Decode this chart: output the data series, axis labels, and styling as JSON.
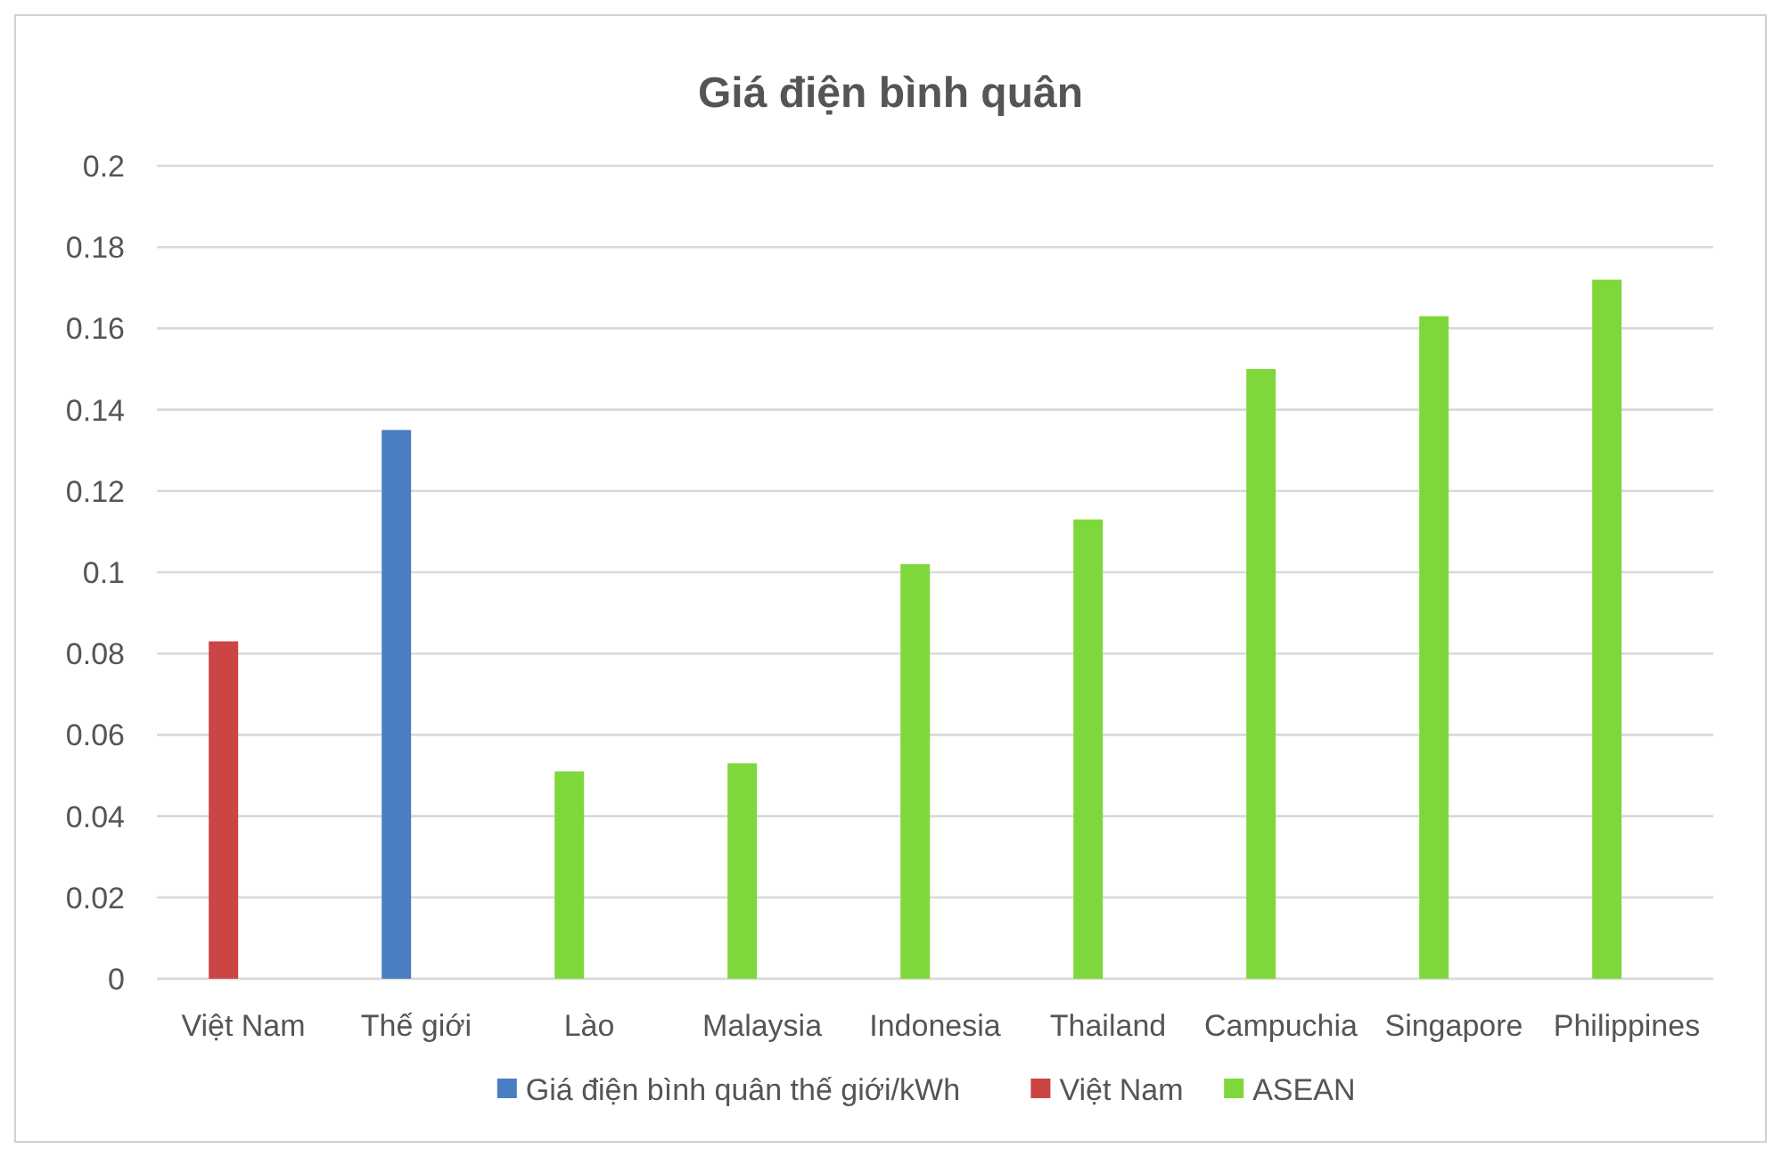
{
  "chart_data": {
    "type": "bar",
    "title": "Giá điện bình quân",
    "categories": [
      "Việt Nam",
      "Thế giới",
      "Lào",
      "Malaysia",
      "Indonesia",
      "Thailand",
      "Campuchia",
      "Singapore",
      "Philippines"
    ],
    "series": [
      {
        "name": "Giá điện bình quân thế giới/kWh",
        "color": "#4a7ec2",
        "values": [
          null,
          0.135,
          null,
          null,
          null,
          null,
          null,
          null,
          null
        ]
      },
      {
        "name": "Việt Nam",
        "color": "#cc4444",
        "values": [
          0.083,
          null,
          null,
          null,
          null,
          null,
          null,
          null,
          null
        ]
      },
      {
        "name": "ASEAN",
        "color": "#7ed83c",
        "values": [
          null,
          null,
          0.051,
          0.053,
          0.102,
          0.113,
          0.15,
          0.163,
          0.172
        ]
      }
    ],
    "ylim": [
      0,
      0.2
    ],
    "yticks": [
      0,
      0.02,
      0.04,
      0.06,
      0.08,
      0.1,
      0.12,
      0.14,
      0.16,
      0.18,
      0.2
    ],
    "grid": "y",
    "legend": "bottom"
  }
}
